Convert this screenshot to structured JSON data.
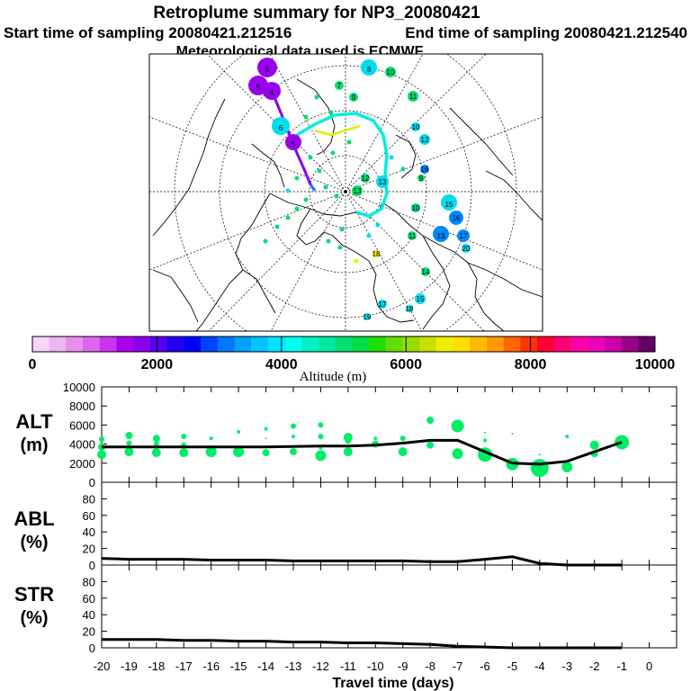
{
  "header": {
    "title": "Retroplume summary for NP3_20080421",
    "start_label": "Start time of sampling 20080421.212516",
    "end_label": "End time of sampling 20080421.212540",
    "met_label": "Meteorological data used is ECMWF"
  },
  "colorbar": {
    "label": "Altitude (m)",
    "ticks": [
      "0",
      "2000",
      "4000",
      "6000",
      "8000",
      "10000"
    ],
    "colors": [
      "#f7d6f7",
      "#f0b4f0",
      "#e890e8",
      "#dd66ee",
      "#cc33ee",
      "#aa00ee",
      "#8800ee",
      "#5500ee",
      "#2200ee",
      "#0000ff",
      "#0044ff",
      "#0077ff",
      "#00a0ff",
      "#00c4ff",
      "#00e4ff",
      "#00ffee",
      "#00f0c4",
      "#00e8a0",
      "#00e070",
      "#00dd44",
      "#22dd00",
      "#66dd00",
      "#99dd00",
      "#ccdd00",
      "#eeee00",
      "#ffdd00",
      "#ffbb00",
      "#ff9900",
      "#ff6600",
      "#ff3300",
      "#ff0033",
      "#ff0077",
      "#ff00aa",
      "#ee00bb",
      "#cc00aa",
      "#990088",
      "#660066"
    ]
  },
  "map": {
    "labels": [
      "5",
      "5",
      "4",
      "6",
      "5",
      "8",
      "10",
      "7",
      "9",
      "11",
      "10",
      "12",
      "13",
      "12",
      "13",
      "15",
      "16",
      "13",
      "17",
      "15",
      "16",
      "14",
      "17",
      "18",
      "19",
      "20",
      "18",
      "11",
      "10",
      "9"
    ],
    "bubble_colors": {
      "purple": "#9900ee",
      "cyan": "#00ddee",
      "blue": "#0088ff",
      "green": "#00e070",
      "navy": "#2200cc",
      "yellow": "#eeee00"
    }
  },
  "chart_data": [
    {
      "type": "scatter",
      "name": "ALT",
      "panel_label": "ALT",
      "panel_unit": "(m)",
      "x": [
        -1,
        -2,
        -3,
        -4,
        -5,
        -6,
        -7,
        -8,
        -9,
        -10,
        -11,
        -12,
        -13,
        -14,
        -15,
        -16,
        -17,
        -18,
        -19,
        -20
      ],
      "line": [
        4200,
        3200,
        2200,
        1900,
        2000,
        3200,
        4400,
        4400,
        4100,
        3900,
        3800,
        3800,
        3750,
        3700,
        3700,
        3700,
        3700,
        3700,
        3700,
        3700
      ],
      "points": [
        {
          "x": -1,
          "y": 4200,
          "s": 8
        },
        {
          "x": -2,
          "y": 3900,
          "s": 5
        },
        {
          "x": -2,
          "y": 3000,
          "s": 4
        },
        {
          "x": -3,
          "y": 4800,
          "s": 2
        },
        {
          "x": -3,
          "y": 1600,
          "s": 6
        },
        {
          "x": -4,
          "y": 1500,
          "s": 10
        },
        {
          "x": -4,
          "y": 2900,
          "s": 1
        },
        {
          "x": -5,
          "y": 1900,
          "s": 7
        },
        {
          "x": -5,
          "y": 5100,
          "s": 1
        },
        {
          "x": -6,
          "y": 2900,
          "s": 8
        },
        {
          "x": -6,
          "y": 4400,
          "s": 2
        },
        {
          "x": -6,
          "y": 5200,
          "s": 1
        },
        {
          "x": -7,
          "y": 5900,
          "s": 7
        },
        {
          "x": -7,
          "y": 3000,
          "s": 6
        },
        {
          "x": -8,
          "y": 6500,
          "s": 4
        },
        {
          "x": -8,
          "y": 3900,
          "s": 4
        },
        {
          "x": -9,
          "y": 4600,
          "s": 3
        },
        {
          "x": -9,
          "y": 3200,
          "s": 5
        },
        {
          "x": -10,
          "y": 4600,
          "s": 2
        },
        {
          "x": -10,
          "y": 4000,
          "s": 4
        },
        {
          "x": -11,
          "y": 4700,
          "s": 5
        },
        {
          "x": -11,
          "y": 3200,
          "s": 5
        },
        {
          "x": -11,
          "y": 4300,
          "s": 3
        },
        {
          "x": -12,
          "y": 6000,
          "s": 3
        },
        {
          "x": -12,
          "y": 4800,
          "s": 3
        },
        {
          "x": -12,
          "y": 2800,
          "s": 6
        },
        {
          "x": -12,
          "y": 3600,
          "s": 2
        },
        {
          "x": -13,
          "y": 5900,
          "s": 3
        },
        {
          "x": -13,
          "y": 4800,
          "s": 2
        },
        {
          "x": -13,
          "y": 3200,
          "s": 4
        },
        {
          "x": -14,
          "y": 5600,
          "s": 2
        },
        {
          "x": -14,
          "y": 4600,
          "s": 1
        },
        {
          "x": -14,
          "y": 3100,
          "s": 4
        },
        {
          "x": -15,
          "y": 5300,
          "s": 2
        },
        {
          "x": -15,
          "y": 3200,
          "s": 6
        },
        {
          "x": -16,
          "y": 4600,
          "s": 2
        },
        {
          "x": -16,
          "y": 3200,
          "s": 6
        },
        {
          "x": -17,
          "y": 4800,
          "s": 3
        },
        {
          "x": -17,
          "y": 3900,
          "s": 3
        },
        {
          "x": -17,
          "y": 3100,
          "s": 5
        },
        {
          "x": -18,
          "y": 4600,
          "s": 4
        },
        {
          "x": -18,
          "y": 4000,
          "s": 3
        },
        {
          "x": -18,
          "y": 3100,
          "s": 5
        },
        {
          "x": -19,
          "y": 4900,
          "s": 4
        },
        {
          "x": -19,
          "y": 4100,
          "s": 3
        },
        {
          "x": -19,
          "y": 3200,
          "s": 5
        },
        {
          "x": -20,
          "y": 4500,
          "s": 3
        },
        {
          "x": -20,
          "y": 3700,
          "s": 4
        },
        {
          "x": -20,
          "y": 2900,
          "s": 5
        }
      ],
      "ylim": [
        0,
        10000
      ],
      "yticks": [
        "0",
        "2000",
        "4000",
        "6000",
        "8000",
        "10000"
      ],
      "color": "#00ee66"
    },
    {
      "type": "line",
      "name": "ABL",
      "panel_label": "ABL",
      "panel_unit": "(%)",
      "x": [
        -1,
        -2,
        -3,
        -4,
        -5,
        -6,
        -7,
        -8,
        -9,
        -10,
        -11,
        -12,
        -13,
        -14,
        -15,
        -16,
        -17,
        -18,
        -19,
        -20
      ],
      "values": [
        0,
        0,
        0,
        2,
        10,
        7,
        4,
        4,
        5,
        5,
        5,
        5,
        5,
        6,
        6,
        6,
        7,
        7,
        7,
        8
      ],
      "ylim": [
        0,
        100
      ],
      "yticks": [
        "0",
        "20",
        "40",
        "60",
        "80"
      ]
    },
    {
      "type": "line",
      "name": "STR",
      "panel_label": "STR",
      "panel_unit": "(%)",
      "x": [
        -1,
        -2,
        -3,
        -4,
        -5,
        -6,
        -7,
        -8,
        -9,
        -10,
        -11,
        -12,
        -13,
        -14,
        -15,
        -16,
        -17,
        -18,
        -19,
        -20
      ],
      "values": [
        0,
        0,
        0,
        0,
        0,
        1,
        2,
        4,
        5,
        6,
        6,
        7,
        7,
        8,
        8,
        9,
        9,
        10,
        10,
        10
      ],
      "ylim": [
        0,
        100
      ],
      "yticks": [
        "0",
        "20",
        "40",
        "60",
        "80"
      ],
      "xticks": [
        "-20",
        "-19",
        "-18",
        "-17",
        "-16",
        "-15",
        "-14",
        "-13",
        "-12",
        "-11",
        "-10",
        "-9",
        "-8",
        "-7",
        "-6",
        "-5",
        "-4",
        "-3",
        "-2",
        "-1",
        "0"
      ],
      "xlabel": "Travel time (days)"
    }
  ]
}
